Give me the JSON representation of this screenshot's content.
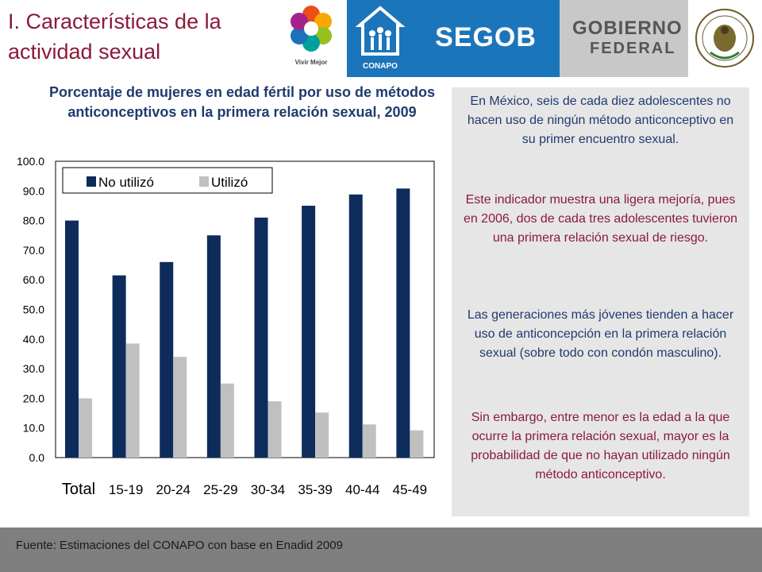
{
  "header": {
    "title": "I. Características de la actividad sexual",
    "logos": {
      "vivir_mejor": "Vivir Mejor",
      "conapo": "CONAPO",
      "segob": "SEGOB",
      "gobierno_line1": "GOBIERNO",
      "gobierno_line2": "FEDERAL"
    }
  },
  "colors": {
    "accent_title": "#8b1a3a",
    "navy": "#1f3b6e",
    "bar_no": "#0d2c5c",
    "bar_si": "#c0c0c0",
    "logo_blue": "#1b75bb"
  },
  "chart_data": {
    "type": "bar",
    "title": "Porcentaje de mujeres en edad fértil por uso de métodos anticonceptivos en la primera relación sexual, 2009",
    "categories": [
      "Total",
      "15-19",
      "20-24",
      "25-29",
      "30-34",
      "35-39",
      "40-44",
      "45-49"
    ],
    "series": [
      {
        "name": "No utilizó",
        "values": [
          80.0,
          61.5,
          66.0,
          75.0,
          81.0,
          85.0,
          88.8,
          90.8
        ]
      },
      {
        "name": "Utilizó",
        "values": [
          20.0,
          38.5,
          34.0,
          25.0,
          19.0,
          15.2,
          11.2,
          9.2
        ]
      }
    ],
    "ylim": [
      0,
      100
    ],
    "yticks": [
      "0.0",
      "10.0",
      "20.0",
      "30.0",
      "40.0",
      "50.0",
      "60.0",
      "70.0",
      "80.0",
      "90.0",
      "100.0"
    ],
    "legend_position": "top-left",
    "grid": false
  },
  "side": {
    "p1": "En México, seis de cada diez adolescentes no hacen uso de ningún método anticonceptivo en su primer encuentro sexual.",
    "p2": "Este indicador muestra una ligera mejoría, pues en 2006, dos de cada tres adolescentes tuvieron una primera relación sexual de riesgo.",
    "p3": "Las generaciones más jóvenes tienden a hacer uso de anticoncepción en la primera relación sexual (sobre todo con condón masculino).",
    "p4": "Sin embargo, entre menor es la edad a la que ocurre la primera relación sexual, mayor es la probabilidad de que no hayan utilizado ningún método anticonceptivo."
  },
  "footer": {
    "source": "Fuente: Estimaciones del CONAPO con base en Enadid 2009"
  }
}
